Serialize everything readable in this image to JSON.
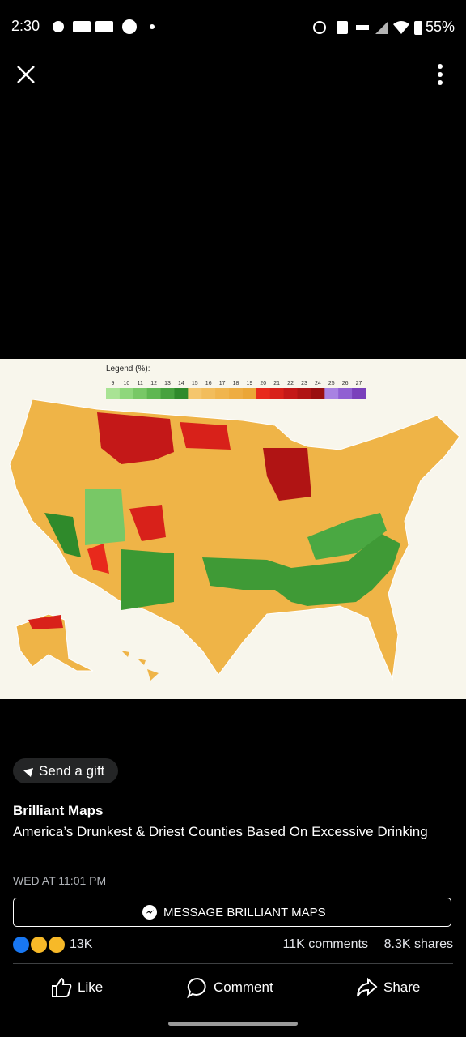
{
  "status_bar": {
    "time": "2:30",
    "battery": "55%"
  },
  "image": {
    "legend": {
      "title": "Legend (%):",
      "ticks": [
        9,
        10,
        11,
        12,
        13,
        14,
        15,
        16,
        17,
        18,
        19,
        20,
        21,
        22,
        23,
        24,
        25,
        26,
        27
      ],
      "colors": [
        "#a9e394",
        "#8fd77c",
        "#78c866",
        "#5fb751",
        "#47a23e",
        "#2f8a2b",
        "#f5c66d",
        "#f2bd5c",
        "#f0b54e",
        "#eead42",
        "#eba636",
        "#e8291c",
        "#d8211a",
        "#c41818",
        "#b01414",
        "#9a0f10",
        "#a882e2",
        "#9060d2",
        "#7a40bb"
      ]
    }
  },
  "gift_button": "Send a gift",
  "post": {
    "author": "Brilliant Maps",
    "caption": "America’s Drunkest & Driest Counties Based On Excessive Drinking",
    "timestamp": "WED AT 11:01 PM"
  },
  "message_button": "MESSAGE BRILLIANT MAPS",
  "stats": {
    "reactions": "13K",
    "comments": "11K comments",
    "shares": "8.3K shares"
  },
  "actions": {
    "like": "Like",
    "comment": "Comment",
    "share": "Share"
  }
}
